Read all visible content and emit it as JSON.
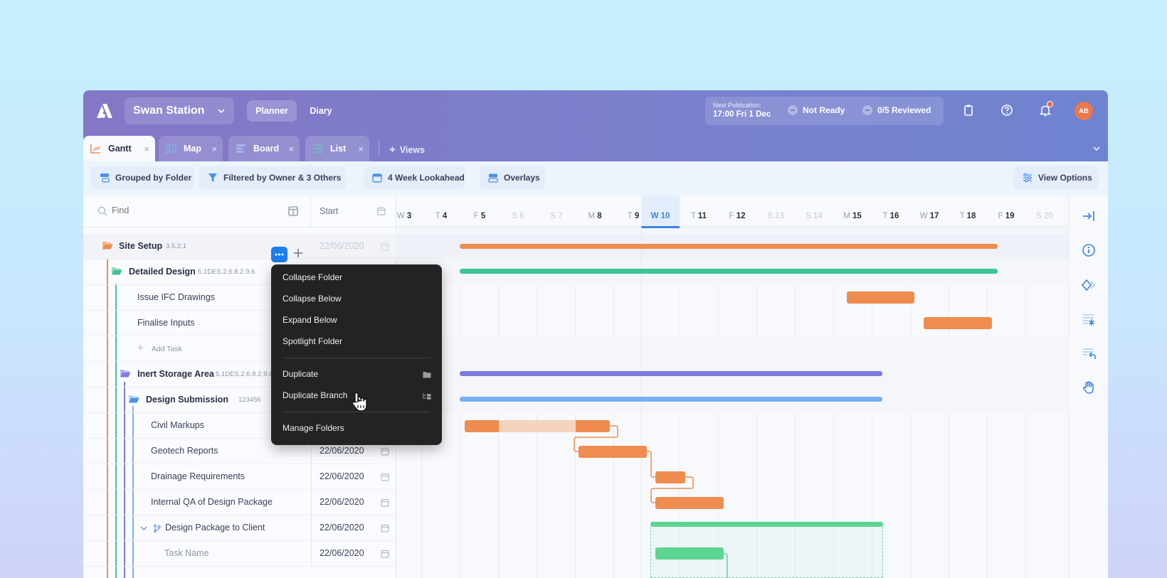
{
  "header": {
    "project_name": "Swan Station",
    "nav": {
      "planner": "Planner",
      "diary": "Diary"
    },
    "publication": {
      "label": "Next Publication:",
      "time": "17:00 Fri 1 Dec",
      "status": "Not Ready",
      "reviewed": "0/5 Reviewed"
    },
    "avatar_initials": "AB"
  },
  "tabs": [
    {
      "label": "Gantt",
      "close": "×"
    },
    {
      "label": "Map",
      "close": "×"
    },
    {
      "label": "Board",
      "close": "×"
    },
    {
      "label": "List",
      "close": "×"
    }
  ],
  "views_label": "Views",
  "filters": {
    "grouped": "Grouped by Folder",
    "filtered": "Filtered by Owner & 3 Others",
    "lookahead": "4 Week Lookahead",
    "overlays": "Overlays",
    "view_options": "View Options"
  },
  "grid": {
    "find_placeholder": "Find",
    "start_header": "Start"
  },
  "rows": [
    {
      "name": "Site Setup",
      "code": "3.5.2.1",
      "start": "22/06/2020"
    },
    {
      "name": "Detailed Design",
      "code": "5.1DES.2.6.8.2.9.6",
      "start": ""
    },
    {
      "name": "Issue IFC Drawings",
      "code": "",
      "start": ""
    },
    {
      "name": "Finalise Inputs",
      "code": "",
      "start": ""
    },
    {
      "name": "Add Task",
      "code": "",
      "start": ""
    },
    {
      "name": "Inert Storage Area",
      "code": "5.1DES.2.6.8.2.9.6",
      "start": ""
    },
    {
      "name": "Design Submission",
      "code": "123456",
      "start": ""
    },
    {
      "name": "Civil Markups",
      "code": "",
      "start": ""
    },
    {
      "name": "Geotech Reports",
      "code": "",
      "start": "22/06/2020"
    },
    {
      "name": "Drainage Requirements",
      "code": "",
      "start": "22/06/2020"
    },
    {
      "name": "Internal QA of Design Package",
      "code": "",
      "start": "22/06/2020"
    },
    {
      "name": "Design Package to Client",
      "code": "",
      "start": "22/06/2020"
    },
    {
      "name": "Task Name",
      "code": "",
      "start": "22/06/2020"
    }
  ],
  "timeline_days": [
    {
      "dow": "W",
      "num": "3",
      "weekend": false
    },
    {
      "dow": "T",
      "num": "4",
      "weekend": false
    },
    {
      "dow": "F",
      "num": "5",
      "weekend": false
    },
    {
      "dow": "S",
      "num": "6",
      "weekend": true
    },
    {
      "dow": "S",
      "num": "7",
      "weekend": true
    },
    {
      "dow": "M",
      "num": "8",
      "weekend": false
    },
    {
      "dow": "T",
      "num": "9",
      "weekend": false
    },
    {
      "dow": "W",
      "num": "10",
      "weekend": false,
      "today": true
    },
    {
      "dow": "T",
      "num": "11",
      "weekend": false
    },
    {
      "dow": "F",
      "num": "12",
      "weekend": false
    },
    {
      "dow": "S",
      "num": "13",
      "weekend": true
    },
    {
      "dow": "S",
      "num": "14",
      "weekend": true
    },
    {
      "dow": "M",
      "num": "15",
      "weekend": false
    },
    {
      "dow": "T",
      "num": "16",
      "weekend": false
    },
    {
      "dow": "W",
      "num": "17",
      "weekend": false
    },
    {
      "dow": "T",
      "num": "18",
      "weekend": false
    },
    {
      "dow": "F",
      "num": "19",
      "weekend": false
    },
    {
      "dow": "S",
      "num": "20",
      "weekend": true
    }
  ],
  "context_menu": {
    "collapse_folder": "Collapse Folder",
    "collapse_below": "Collapse Below",
    "expand_below": "Expand Below",
    "spotlight_folder": "Spotlight Folder",
    "duplicate": "Duplicate",
    "duplicate_branch": "Duplicate Branch",
    "manage_folders": "Manage Folders"
  },
  "colors": {
    "accent": "#3a86e0",
    "orange": "#ef8c4f",
    "green": "#3ec496",
    "purple": "#7c7be0",
    "blue": "#79b0ef"
  }
}
